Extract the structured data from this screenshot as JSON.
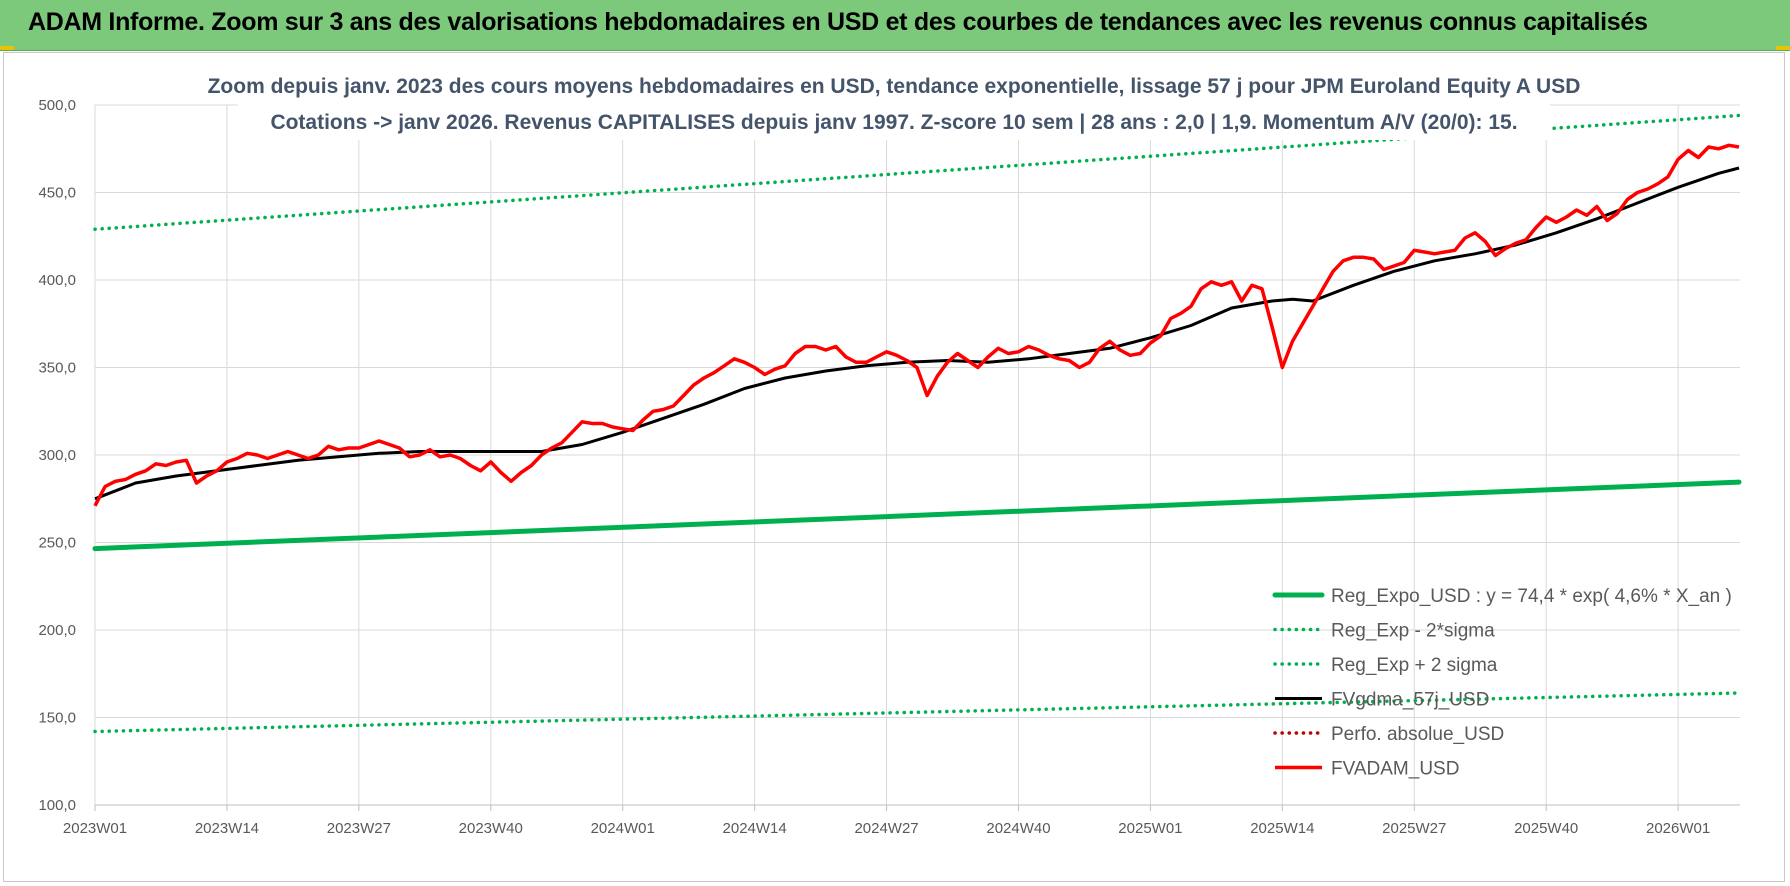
{
  "header": {
    "title": "ADAM Informe. Zoom sur 3 ans des valorisations hebdomadaires en USD et des courbes de tendances avec les revenus connus capitalisés"
  },
  "colors": {
    "header_bg": "#7cc97c",
    "regression": "#00b050",
    "trend_line": "#000000",
    "price_line": "#ff0000",
    "grid": "#d9d9d9"
  },
  "chart_data": {
    "type": "line",
    "title_line1": "Zoom depuis janv. 2023 des cours moyens hebdomadaires en USD, tendance exponentielle, lissage 57 j pour JPM Euroland Equity A USD",
    "title_line2": "Cotations -> janv 2026. Revenus CAPITALISES depuis janv 1997. Z-score 10 sem | 28 ans : 2,0 | 1,9. Momentum A/V (20/0): 15.",
    "ylim": [
      100,
      500
    ],
    "y_ticks": [
      "100,0",
      "150,0",
      "200,0",
      "250,0",
      "300,0",
      "350,0",
      "400,0",
      "450,0",
      "500,0"
    ],
    "x_range_weeks": [
      0,
      162
    ],
    "x_ticks": [
      {
        "label": "2023W01",
        "week": 0
      },
      {
        "label": "2023W14",
        "week": 13
      },
      {
        "label": "2023W27",
        "week": 26
      },
      {
        "label": "2023W40",
        "week": 39
      },
      {
        "label": "2024W01",
        "week": 52
      },
      {
        "label": "2024W14",
        "week": 65
      },
      {
        "label": "2024W27",
        "week": 78
      },
      {
        "label": "2024W40",
        "week": 91
      },
      {
        "label": "2025W01",
        "week": 104
      },
      {
        "label": "2025W14",
        "week": 117
      },
      {
        "label": "2025W27",
        "week": 130
      },
      {
        "label": "2025W40",
        "week": 143
      },
      {
        "label": "2026W01",
        "week": 156
      }
    ],
    "grid": true,
    "legend_position": "bottom-right",
    "series": [
      {
        "name": "Reg_Expo_USD : y = 74,4 * exp( 4,6% * X_an )",
        "style": "solid-thick",
        "color": "#00b050",
        "x": [
          0,
          162
        ],
        "values": [
          246.5,
          284.5
        ]
      },
      {
        "name": "Reg_Exp - 2*sigma",
        "style": "dotted",
        "color": "#00b050",
        "x": [
          0,
          162
        ],
        "values": [
          142,
          164
        ]
      },
      {
        "name": "Reg_Exp + 2 sigma",
        "style": "dotted",
        "color": "#00b050",
        "x": [
          0,
          162
        ],
        "values": [
          429,
          494
        ]
      },
      {
        "name": "FVgdma_57j_USD",
        "style": "solid",
        "color": "#000000",
        "x": [
          0,
          4,
          8,
          12,
          16,
          20,
          24,
          28,
          32,
          36,
          40,
          44,
          48,
          52,
          56,
          60,
          64,
          68,
          72,
          76,
          80,
          84,
          88,
          92,
          96,
          100,
          104,
          108,
          112,
          116,
          118,
          120,
          124,
          128,
          132,
          136,
          140,
          144,
          148,
          152,
          156,
          160,
          162
        ],
        "values": [
          275,
          284,
          288,
          291,
          294,
          297,
          299,
          301,
          302,
          302,
          302,
          302,
          306,
          313,
          321,
          329,
          338,
          344,
          348,
          351,
          353,
          354,
          353,
          355,
          358,
          361,
          367,
          374,
          384,
          388,
          389,
          388,
          397,
          405,
          411,
          415,
          420,
          427,
          435,
          444,
          453,
          461,
          464
        ]
      },
      {
        "name": "Perfo. absolue_USD",
        "style": "dotted",
        "color": "#c00000",
        "x": [],
        "values": []
      },
      {
        "name": "FVADAM_USD",
        "style": "solid",
        "color": "#ff0000",
        "x": [
          0,
          1,
          2,
          3,
          4,
          5,
          6,
          7,
          8,
          9,
          10,
          11,
          12,
          13,
          14,
          15,
          16,
          17,
          18,
          19,
          20,
          21,
          22,
          23,
          24,
          25,
          26,
          27,
          28,
          29,
          30,
          31,
          32,
          33,
          34,
          35,
          36,
          37,
          38,
          39,
          40,
          41,
          42,
          43,
          44,
          45,
          46,
          47,
          48,
          49,
          50,
          51,
          52,
          53,
          54,
          55,
          56,
          57,
          58,
          59,
          60,
          61,
          62,
          63,
          64,
          65,
          66,
          67,
          68,
          69,
          70,
          71,
          72,
          73,
          74,
          75,
          76,
          77,
          78,
          79,
          80,
          81,
          82,
          83,
          84,
          85,
          86,
          87,
          88,
          89,
          90,
          91,
          92,
          93,
          94,
          95,
          96,
          97,
          98,
          99,
          100,
          101,
          102,
          103,
          104,
          105,
          106,
          107,
          108,
          109,
          110,
          111,
          112,
          113,
          114,
          115,
          116,
          117,
          118,
          119,
          120,
          121,
          122,
          123,
          124,
          125,
          126,
          127,
          128,
          129,
          130,
          131,
          132,
          133,
          134,
          135,
          136,
          137,
          138,
          139,
          140,
          141,
          142,
          143,
          144,
          145,
          146,
          147,
          148,
          149,
          150,
          151,
          152,
          153,
          154,
          155,
          156,
          157,
          158,
          159,
          160,
          161,
          162
        ],
        "values": [
          271,
          282,
          285,
          286,
          289,
          291,
          295,
          294,
          296,
          297,
          284,
          288,
          291,
          296,
          298,
          301,
          300,
          298,
          300,
          302,
          300,
          298,
          300,
          305,
          303,
          304,
          304,
          306,
          308,
          306,
          304,
          299,
          300,
          303,
          299,
          300,
          298,
          294,
          291,
          296,
          290,
          285,
          290,
          294,
          300,
          304,
          307,
          313,
          319,
          318,
          318,
          316,
          315,
          314,
          320,
          325,
          326,
          328,
          334,
          340,
          344,
          347,
          351,
          355,
          353,
          350,
          346,
          349,
          351,
          358,
          362,
          362,
          360,
          362,
          356,
          353,
          353,
          356,
          359,
          357,
          354,
          350,
          334,
          345,
          353,
          358,
          354,
          350,
          356,
          361,
          358,
          359,
          362,
          360,
          357,
          355,
          354,
          350,
          353,
          361,
          365,
          360,
          357,
          358,
          364,
          368,
          378,
          381,
          385,
          395,
          399,
          397,
          399,
          388,
          397,
          395,
          373,
          350,
          365,
          375,
          385,
          395,
          405,
          411,
          413,
          413,
          412,
          406,
          408,
          410,
          417,
          416,
          415,
          416,
          417,
          424,
          427,
          422,
          414,
          418,
          421,
          423,
          430,
          436,
          433,
          436,
          440,
          437,
          442,
          434,
          438,
          446,
          450,
          452,
          455,
          459,
          469,
          474,
          470,
          476,
          475,
          477,
          476
        ]
      }
    ]
  }
}
